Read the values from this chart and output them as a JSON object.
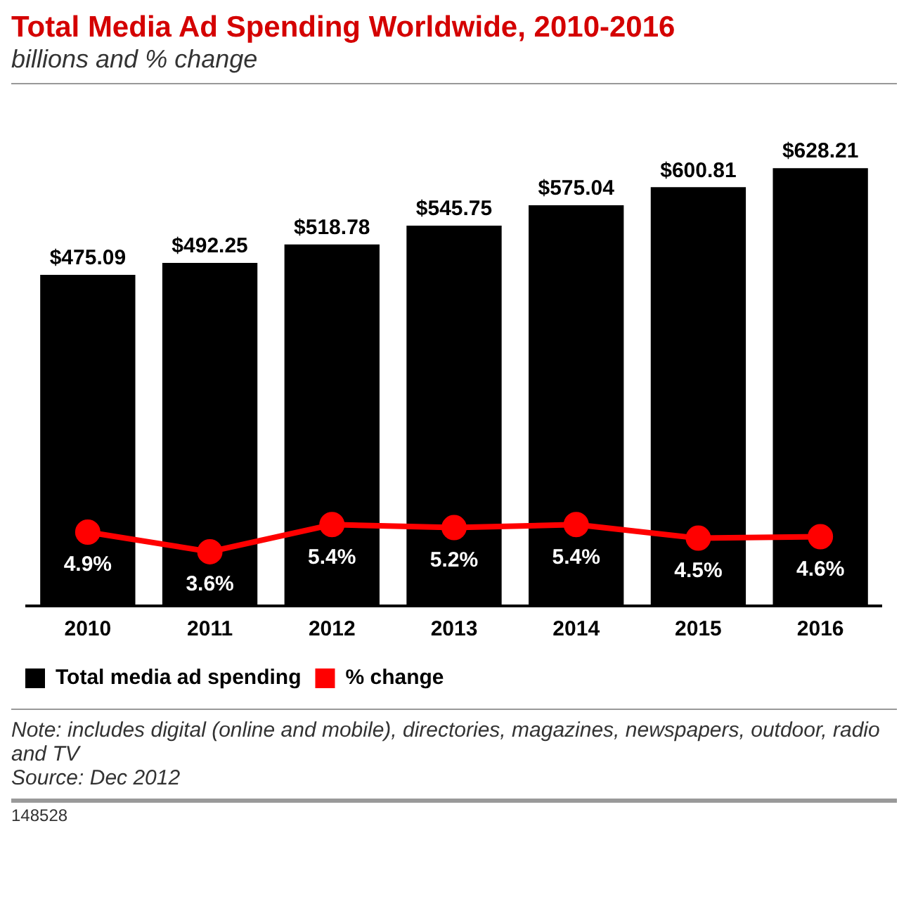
{
  "chart_data": {
    "type": "bar",
    "title": "Total Media Ad Spending Worldwide, 2010-2016",
    "subtitle": "billions and % change",
    "categories": [
      "2010",
      "2011",
      "2012",
      "2013",
      "2014",
      "2015",
      "2016"
    ],
    "series": [
      {
        "name": "Total media ad spending",
        "color": "#000000",
        "values": [
          475.09,
          492.25,
          518.78,
          545.75,
          575.04,
          600.81,
          628.21
        ],
        "value_labels": [
          "$475.09",
          "$492.25",
          "$518.78",
          "$545.75",
          "$575.04",
          "$600.81",
          "$628.21"
        ]
      },
      {
        "name": "% change",
        "type": "line",
        "axis": "y2",
        "color": "#ff0000",
        "values": [
          4.9,
          3.6,
          5.4,
          5.2,
          5.4,
          4.5,
          4.6
        ],
        "value_labels": [
          "4.9%",
          "3.6%",
          "5.4%",
          "5.2%",
          "5.4%",
          "4.5%",
          "4.6%"
        ]
      }
    ],
    "tick_labels": "x",
    "grid": false,
    "legend": "bottom left",
    "marker": "circle",
    "line_style": "solid",
    "annotations": [
      "Note: includes digital (online and mobile), directories, magazines, newspapers, outdoor, radio and TV",
      "Source: Dec 2012",
      "148528"
    ]
  }
}
